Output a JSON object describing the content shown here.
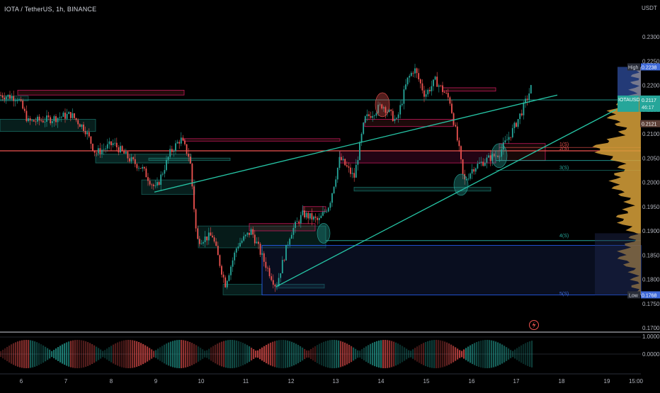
{
  "chart_title": "IOTA / TetherUS, 1h, BINANCE",
  "colors": {
    "background": "#000000",
    "up_candle": "#26a69a",
    "down_candle": "#ef5350",
    "trendline": "#26c6a6",
    "resistance": "#ef5350",
    "volume_profile": "#d8a13a",
    "volume_profile_upper": "#3f6ad8",
    "current_price_tag": "#26a69a"
  },
  "price_axis": {
    "currency": "USDT",
    "ticks": [
      "0.2300",
      "0.2250",
      "0.2200",
      "0.2150",
      "0.2100",
      "0.2050",
      "0.2000",
      "0.1950",
      "0.1900",
      "0.1850",
      "0.1800",
      "0.1750",
      "0.1700"
    ],
    "high_label": "High",
    "high_value": "0.2238",
    "low_label": "Low",
    "low_value": "0.1768",
    "current_symbol": "IOTAUSDT",
    "current_price": "0.2117",
    "countdown": "46:17",
    "other_level": "0.2121"
  },
  "time_axis": {
    "labels": [
      "6",
      "7",
      "8",
      "9",
      "10",
      "11",
      "12",
      "13",
      "14",
      "15",
      "16",
      "17",
      "18",
      "19",
      "15:00"
    ]
  },
  "fib_labels": [
    "1(S)",
    "2(S)",
    "3(S)",
    "4(S)",
    "5(S)"
  ],
  "indicator_axis": {
    "ticks": [
      "1.0000",
      "0.0000"
    ]
  },
  "lightning_icon": "lightning-icon"
}
